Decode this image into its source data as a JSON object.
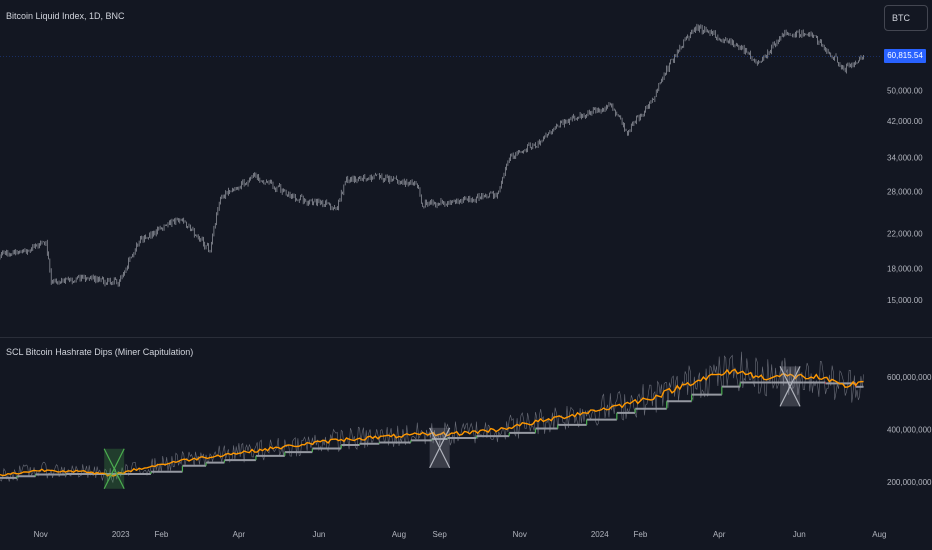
{
  "top_pane": {
    "title": "Bitcoin Liquid Index, 1D, BNC",
    "symbol_button": "BTC",
    "last_price": "60,815.54",
    "last_price_color": "#2962ff"
  },
  "bottom_pane": {
    "title": "SCL Bitcoin Hashrate Dips (Miner Capitulation)"
  },
  "x_axis": {
    "labels": [
      "Nov",
      "2023",
      "Feb",
      "Apr",
      "Jun",
      "Aug",
      "Sep",
      "Nov",
      "2024",
      "Feb",
      "Apr",
      "Jun",
      "Aug"
    ]
  },
  "chart_data": [
    {
      "type": "candlestick",
      "title": "Bitcoin Liquid Index, 1D, BNC",
      "scale": "log",
      "x_range": [
        "2022-10-01",
        "2024-07-31"
      ],
      "ylim": [
        13000,
        75000
      ],
      "y_ticks": [
        {
          "value": 50000,
          "label": "50,000.00"
        },
        {
          "value": 42000,
          "label": "42,000.00"
        },
        {
          "value": 34000,
          "label": "34,000.00"
        },
        {
          "value": 28000,
          "label": "28,000.00"
        },
        {
          "value": 22000,
          "label": "22,000.00"
        },
        {
          "value": 18000,
          "label": "18,000.00"
        },
        {
          "value": 15000,
          "label": "15,000.00"
        }
      ],
      "last_value": 60815.54,
      "candle_color": "#b2b5be",
      "approx_close_path": [
        [
          "2022-10-01",
          19500
        ],
        [
          "2022-10-25",
          20000
        ],
        [
          "2022-11-05",
          21000
        ],
        [
          "2022-11-09",
          16500
        ],
        [
          "2022-12-01",
          17000
        ],
        [
          "2022-12-31",
          16600
        ],
        [
          "2023-01-15",
          21000
        ],
        [
          "2023-02-15",
          24000
        ],
        [
          "2023-03-10",
          20000
        ],
        [
          "2023-03-18",
          27000
        ],
        [
          "2023-04-13",
          30500
        ],
        [
          "2023-05-15",
          27000
        ],
        [
          "2023-06-15",
          25500
        ],
        [
          "2023-06-22",
          30000
        ],
        [
          "2023-07-15",
          30500
        ],
        [
          "2023-08-16",
          29000
        ],
        [
          "2023-08-18",
          26000
        ],
        [
          "2023-09-15",
          26500
        ],
        [
          "2023-10-15",
          27500
        ],
        [
          "2023-10-24",
          34000
        ],
        [
          "2023-11-15",
          37000
        ],
        [
          "2023-12-05",
          42000
        ],
        [
          "2024-01-10",
          46000
        ],
        [
          "2024-01-22",
          39500
        ],
        [
          "2024-02-10",
          47000
        ],
        [
          "2024-02-28",
          62000
        ],
        [
          "2024-03-14",
          72000
        ],
        [
          "2024-04-15",
          65000
        ],
        [
          "2024-05-01",
          58000
        ],
        [
          "2024-05-20",
          69000
        ],
        [
          "2024-06-10",
          69500
        ],
        [
          "2024-07-05",
          56500
        ],
        [
          "2024-07-20",
          60800
        ]
      ]
    },
    {
      "type": "line",
      "title": "SCL Bitcoin Hashrate Dips (Miner Capitulation)",
      "x_range": [
        "2022-10-01",
        "2024-07-31"
      ],
      "ylim": [
        100000000,
        750000000
      ],
      "y_ticks": [
        {
          "value": 600000000,
          "label": "600,000,000.00"
        },
        {
          "value": 400000000,
          "label": "400,000,000.00"
        },
        {
          "value": 200000000,
          "label": "200,000,000.00"
        }
      ],
      "series": [
        {
          "color": "#ff9800",
          "points": [
            [
              "2022-10-01",
              225000000
            ],
            [
              "2022-11-01",
              245000000
            ],
            [
              "2022-12-01",
              240000000
            ],
            [
              "2022-12-25",
              225000000
            ],
            [
              "2023-01-15",
              250000000
            ],
            [
              "2023-02-15",
              280000000
            ],
            [
              "2023-03-15",
              300000000
            ],
            [
              "2023-04-15",
              320000000
            ],
            [
              "2023-05-15",
              340000000
            ],
            [
              "2023-06-15",
              360000000
            ],
            [
              "2023-07-15",
              370000000
            ],
            [
              "2023-08-15",
              380000000
            ],
            [
              "2023-09-15",
              385000000
            ],
            [
              "2023-10-15",
              400000000
            ],
            [
              "2023-11-15",
              430000000
            ],
            [
              "2023-12-15",
              460000000
            ],
            [
              "2024-01-15",
              490000000
            ],
            [
              "2024-02-15",
              530000000
            ],
            [
              "2024-03-15",
              590000000
            ],
            [
              "2024-04-15",
              625000000
            ],
            [
              "2024-05-01",
              600000000
            ],
            [
              "2024-05-20",
              605000000
            ],
            [
              "2024-06-15",
              600000000
            ],
            [
              "2024-07-05",
              565000000
            ],
            [
              "2024-07-20",
              585000000
            ]
          ]
        },
        {
          "color": "#808080",
          "points": [
            [
              "2022-10-01",
              215000000
            ],
            [
              "2022-11-01",
              230000000
            ],
            [
              "2022-12-01",
              230000000
            ],
            [
              "2023-01-15",
              230000000
            ],
            [
              "2023-02-15",
              260000000
            ],
            [
              "2023-04-15",
              300000000
            ],
            [
              "2023-06-15",
              340000000
            ],
            [
              "2023-08-15",
              360000000
            ],
            [
              "2023-10-15",
              380000000
            ],
            [
              "2023-12-15",
              430000000
            ],
            [
              "2024-02-15",
              500000000
            ],
            [
              "2024-04-15",
              580000000
            ],
            [
              "2024-06-15",
              580000000
            ],
            [
              "2024-07-20",
              560000000
            ]
          ]
        }
      ],
      "signals": [
        {
          "date": "2022-12-27",
          "value": 250000000,
          "color": "#4caf50"
        },
        {
          "date": "2023-09-01",
          "value": 330000000,
          "color": "#b2b5be"
        },
        {
          "date": "2024-05-25",
          "value": 565000000,
          "color": "#b2b5be"
        }
      ]
    }
  ]
}
